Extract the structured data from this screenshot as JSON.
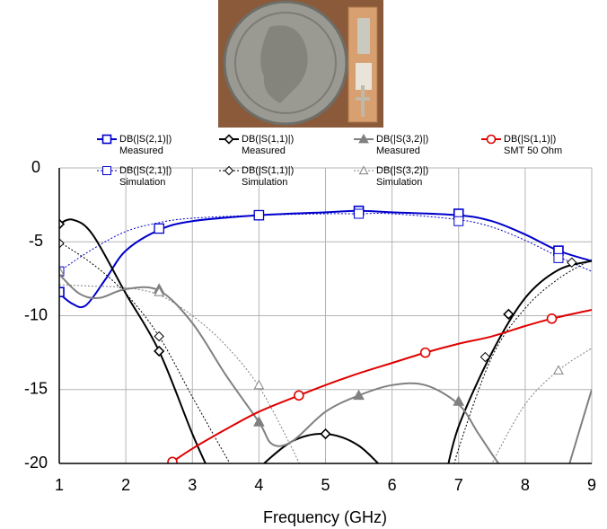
{
  "chart_data": {
    "type": "line",
    "xlabel": "Frequency (GHz)",
    "xlim": [
      1,
      9
    ],
    "xticks": [
      1,
      2,
      3,
      4,
      5,
      6,
      7,
      8,
      9
    ],
    "ylim": [
      -20,
      0
    ],
    "yticks": [
      0,
      -5,
      -10,
      -15,
      -20
    ],
    "grid": true,
    "series": [
      {
        "name": "DB(|S(2,1)|)",
        "note": "Measured",
        "color": "#0000cc",
        "dashed": false,
        "marker": "square",
        "marker_filled": false,
        "x": [
          1,
          1.2,
          1.4,
          1.7,
          2,
          2.5,
          3,
          4,
          5,
          5.5,
          6,
          7,
          7.5,
          8,
          8.5,
          9
        ],
        "values": [
          -8.5,
          -9.2,
          -9.3,
          -7.5,
          -5.6,
          -4.2,
          -3.6,
          -3.2,
          -3.0,
          -2.9,
          -3.0,
          -3.2,
          -3.6,
          -4.5,
          -5.6,
          -6.3
        ],
        "marker_x": [
          1,
          2.5,
          4,
          5.5,
          7,
          8.5
        ],
        "marker_values": [
          -8.4,
          -4.1,
          -3.2,
          -2.9,
          -3.1,
          -5.6
        ]
      },
      {
        "name": "DB(|S(2,1)|)",
        "note": "Simulation",
        "color": "#0000cc",
        "dashed": true,
        "marker": "square",
        "marker_filled": false,
        "x": [
          1,
          1.5,
          2,
          2.5,
          3,
          4,
          5,
          5.5,
          6,
          7,
          7.5,
          8,
          8.5,
          9
        ],
        "values": [
          -7,
          -5.5,
          -4.3,
          -3.7,
          -3.4,
          -3.2,
          -3.1,
          -3.1,
          -3.1,
          -3.5,
          -4.0,
          -4.9,
          -6.0,
          -7.0
        ],
        "marker_x": [
          1,
          2.5,
          4,
          5.5,
          7,
          8.5
        ],
        "marker_values": [
          -7,
          -4.1,
          -3.2,
          -3.1,
          -3.6,
          -6.1
        ]
      },
      {
        "name": "DB(|S(1,1)|)",
        "note": "Measured",
        "color": "#000000",
        "dashed": false,
        "marker": "diamond",
        "marker_filled": false,
        "x": [
          1,
          1.2,
          1.5,
          2,
          2.5,
          3,
          3.3,
          null,
          4,
          4.5,
          5,
          5.5,
          6,
          null,
          6.8,
          7,
          7.5,
          8,
          8.5,
          9
        ],
        "values": [
          -3.8,
          -3.5,
          -4.5,
          -8.5,
          -12.4,
          -18,
          -21,
          null,
          -20.3,
          -18.5,
          -18,
          -18.8,
          -21,
          null,
          -21,
          -17.5,
          -12.5,
          -8.8,
          -6.9,
          -6.3
        ],
        "marker_x": [
          1,
          2.5,
          5,
          7.75
        ],
        "marker_values": [
          -3.8,
          -12.4,
          -18,
          -9.9
        ]
      },
      {
        "name": "DB(|S(1,1)|)",
        "note": "Simulation",
        "color": "#000000",
        "dashed": true,
        "marker": "diamond",
        "marker_filled": false,
        "x": [
          1,
          1.5,
          2,
          2.5,
          3,
          3.5,
          3.7,
          null,
          6.9,
          7,
          7.5,
          8,
          8.5,
          9
        ],
        "values": [
          -5,
          -6.5,
          -8.5,
          -11.4,
          -15.5,
          -19.5,
          -21,
          null,
          -21,
          -19,
          -12.8,
          -9.5,
          -7.5,
          -6.2
        ],
        "marker_x": [
          1,
          2.5,
          7.4,
          8.7
        ],
        "marker_values": [
          -5.1,
          -11.4,
          -12.8,
          -6.4
        ]
      },
      {
        "name": "DB(|S(3,2)|)",
        "note": "Measured",
        "color": "#808080",
        "dashed": false,
        "marker": "triangle",
        "marker_filled": true,
        "x": [
          1,
          1.3,
          1.6,
          2,
          2.5,
          3,
          3.5,
          4,
          4.2,
          4.5,
          5,
          5.5,
          6,
          6.5,
          7,
          7.3,
          7.6,
          7.8,
          null,
          8.6,
          9
        ],
        "values": [
          -7.2,
          -8.5,
          -8.8,
          -8.2,
          -8.3,
          -10.5,
          -14,
          -17.2,
          -18.7,
          -18.5,
          -16.5,
          -15.4,
          -14.7,
          -14.7,
          -16,
          -18,
          -20,
          -21,
          null,
          -21,
          -15
        ],
        "marker_x": [
          2.5,
          4,
          5.5,
          7
        ],
        "marker_values": [
          -8.2,
          -17.2,
          -15.4,
          -15.8
        ]
      },
      {
        "name": "DB(|S(3,2)|)",
        "note": "Simulation",
        "color": "#808080",
        "dashed": true,
        "marker": "triangle",
        "marker_filled": false,
        "x": [
          1,
          1.5,
          2,
          2.5,
          3,
          3.5,
          4,
          4.5,
          4.7,
          null,
          7.4,
          7.5,
          8,
          8.5,
          9
        ],
        "values": [
          -7.9,
          -8,
          -8.1,
          -8.6,
          -10,
          -12,
          -14.8,
          -19,
          -21,
          null,
          -21,
          -20,
          -16,
          -13.7,
          -12.2
        ],
        "marker_x": [
          1,
          2.5,
          4,
          8.5
        ],
        "marker_values": [
          -7.0,
          -8.4,
          -14.7,
          -13.7
        ]
      },
      {
        "name": "DB(|S(1,1)|)",
        "note": "SMT 50 Ohm",
        "color": "#e00000",
        "dashed": false,
        "marker": "circle",
        "marker_filled": false,
        "x": [
          2.6,
          2.7,
          3,
          3.5,
          4,
          4.6,
          5,
          5.5,
          6,
          6.5,
          7,
          7.5,
          8,
          8.4,
          9
        ],
        "values": [
          -20.3,
          -19.9,
          -19,
          -17.7,
          -16.5,
          -15.4,
          -14.7,
          -13.9,
          -13.2,
          -12.5,
          -11.9,
          -11.4,
          -10.7,
          -10.2,
          -9.6
        ],
        "marker_x": [
          2.7,
          4.6,
          6.5,
          8.4
        ],
        "marker_values": [
          -19.9,
          -15.4,
          -12.5,
          -10.2
        ]
      }
    ]
  }
}
